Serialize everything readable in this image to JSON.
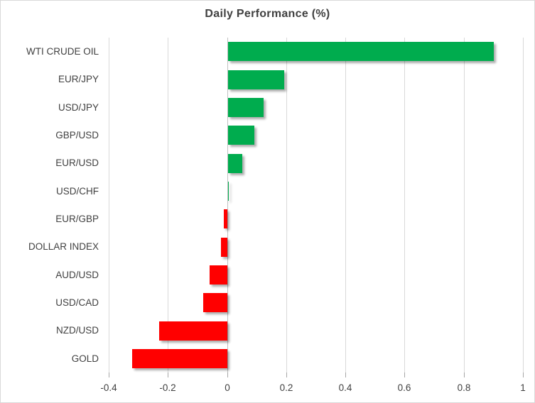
{
  "window": {
    "background": "#ffffff",
    "border_color": "#d9d9d9"
  },
  "chart_data": {
    "type": "bar",
    "orientation": "horizontal",
    "title": "Daily Performance (%)",
    "categories": [
      "WTI CRUDE OIL",
      "EUR/JPY",
      "USD/JPY",
      "GBP/USD",
      "EUR/USD",
      "USD/CHF",
      "EUR/GBP",
      "DOLLAR INDEX",
      "AUD/USD",
      "USD/CAD",
      "NZD/USD",
      "GOLD"
    ],
    "values": [
      0.9,
      0.19,
      0.12,
      0.09,
      0.05,
      0.0,
      -0.01,
      -0.02,
      -0.06,
      -0.08,
      -0.23,
      -0.32
    ],
    "xlabel": "",
    "ylabel": "",
    "xlim": [
      -0.4,
      1.0
    ],
    "x_ticks": {
      "values": [
        -0.4,
        -0.2,
        0,
        0.2,
        0.4,
        0.6,
        0.8,
        1
      ],
      "labels": [
        "-0.4",
        "-0.2",
        "0",
        "0.2",
        "0.4",
        "0.6",
        "0.8",
        "1"
      ]
    },
    "grid": true,
    "legend": "none",
    "colors": {
      "positive": "#00ac4e",
      "negative": "#ff0000",
      "gridline": "#d9d9d9",
      "zero_line": "#c0c0c0",
      "tick_mark": "#a6a6a6",
      "title_text": "#404040",
      "axis_text": "#404040"
    }
  }
}
